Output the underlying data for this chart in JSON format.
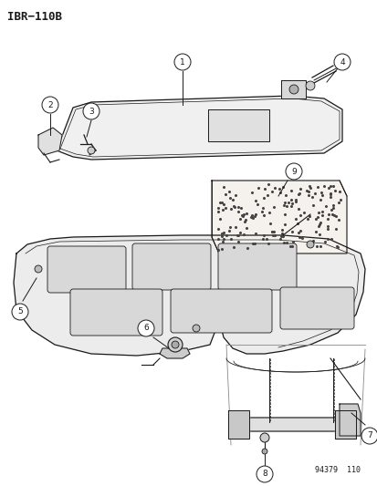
{
  "title": "IBR−110B",
  "footnote": "94379  110",
  "bg_color": "#ffffff",
  "fg_color": "#1a1a1a",
  "fig_width": 4.14,
  "fig_height": 5.33,
  "dpi": 100
}
